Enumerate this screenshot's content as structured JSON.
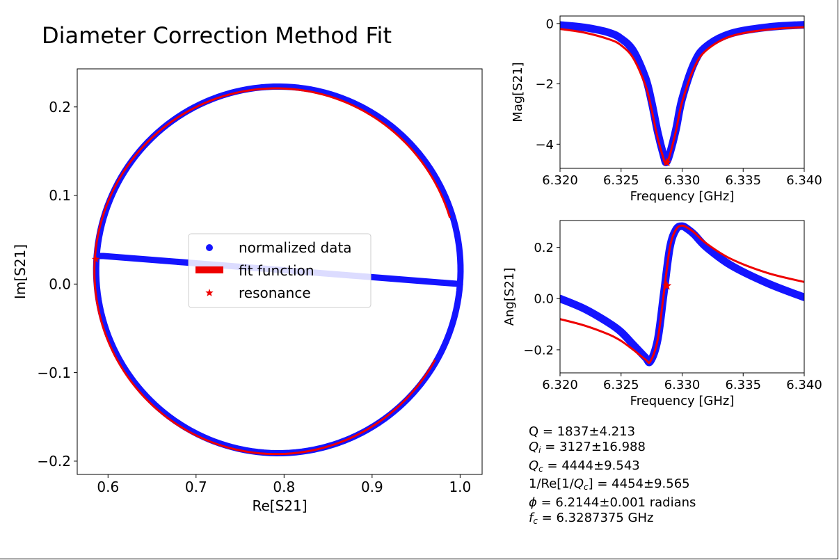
{
  "title": "Diameter Correction Method Fit",
  "colors": {
    "data": "#1414ff",
    "fit": "#ee0000"
  },
  "legend": {
    "placement": "center",
    "entries": [
      "normalized data",
      "fit function",
      "resonance"
    ]
  },
  "stats": {
    "q_label": "Q",
    "q_value": "1837±4.213",
    "qi_label": "Q",
    "qi_sub": "i",
    "qi_value": "3127±16.988",
    "qc_label": "Q",
    "qc_sub": "c",
    "qc_value": "4444±9.543",
    "req_prefix": "1/Re[1/",
    "req_label": "Q",
    "req_sub": "c",
    "req_suffix": "]",
    "req_value": "4454±9.565",
    "phi_label": "ϕ",
    "phi_value": "6.2144±0.001 radians",
    "fc_label": "f",
    "fc_sub": "c",
    "fc_value": "6.3287375 GHz"
  },
  "chart_data": [
    {
      "type": "scatter",
      "panel": "complex-plane",
      "xlabel": "Re[S21]",
      "ylabel": "Im[S21]",
      "xlim": [
        0.565,
        1.025
      ],
      "ylim": [
        -0.215,
        0.243
      ],
      "xticks": [
        0.6,
        0.7,
        0.8,
        0.9,
        1.0
      ],
      "xtick_labels": [
        "0.6",
        "0.7",
        "0.8",
        "0.9",
        "1.0"
      ],
      "yticks": [
        -0.2,
        -0.1,
        0.0,
        0.1,
        0.2
      ],
      "ytick_labels": [
        "−0.2",
        "−0.1",
        "0.0",
        "0.1",
        "0.2"
      ],
      "grid": false,
      "series": [
        {
          "name": "normalized data",
          "kind": "circle-loop",
          "center": [
            0.7935,
            0.016
          ],
          "radius": 0.207,
          "start_angle_deg": 175.5
        },
        {
          "name": "fit function",
          "kind": "arc",
          "center": [
            0.791,
            0.0145
          ],
          "radius": 0.2065,
          "start_angle_deg": 17,
          "end_angle_deg": 332
        },
        {
          "name": "resonance",
          "kind": "marker",
          "x": 0.586,
          "y": 0.028
        }
      ]
    },
    {
      "type": "line",
      "panel": "magnitude",
      "xlabel": "Frequency [GHz]",
      "ylabel": "Mag[S21]",
      "xlim": [
        6.32,
        6.34
      ],
      "ylim": [
        -4.8,
        0.25
      ],
      "xticks": [
        6.32,
        6.325,
        6.33,
        6.335,
        6.34
      ],
      "xtick_labels": [
        "6.320",
        "6.325",
        "6.330",
        "6.335",
        "6.340"
      ],
      "yticks": [
        -4,
        -2,
        0
      ],
      "ytick_labels": [
        "−4",
        "−2",
        "0"
      ],
      "grid": false,
      "series": [
        {
          "name": "normalized data",
          "x": [
            6.32,
            6.322,
            6.324,
            6.325,
            6.326,
            6.327,
            6.3275,
            6.328,
            6.3285,
            6.3287,
            6.329,
            6.3295,
            6.33,
            6.331,
            6.332,
            6.334,
            6.337,
            6.34
          ],
          "y": [
            -0.05,
            -0.13,
            -0.3,
            -0.5,
            -0.9,
            -1.8,
            -2.6,
            -3.6,
            -4.4,
            -4.6,
            -4.3,
            -3.5,
            -2.5,
            -1.3,
            -0.75,
            -0.33,
            -0.12,
            -0.04
          ]
        },
        {
          "name": "fit function",
          "x": [
            6.32,
            6.322,
            6.324,
            6.325,
            6.326,
            6.327,
            6.3275,
            6.328,
            6.3285,
            6.3287,
            6.329,
            6.3295,
            6.33,
            6.331,
            6.332,
            6.334,
            6.337,
            6.34
          ],
          "y": [
            -0.18,
            -0.3,
            -0.52,
            -0.72,
            -1.15,
            -2.05,
            -2.85,
            -3.8,
            -4.5,
            -4.65,
            -4.35,
            -3.55,
            -2.6,
            -1.45,
            -0.88,
            -0.42,
            -0.2,
            -0.12
          ]
        },
        {
          "name": "resonance",
          "x": [
            6.32875
          ],
          "y": [
            -4.6
          ]
        }
      ]
    },
    {
      "type": "line",
      "panel": "angle",
      "xlabel": "Frequency [GHz]",
      "ylabel": "Ang[S21]",
      "xlim": [
        6.32,
        6.34
      ],
      "ylim": [
        -0.29,
        0.305
      ],
      "xticks": [
        6.32,
        6.325,
        6.33,
        6.335,
        6.34
      ],
      "xtick_labels": [
        "6.320",
        "6.325",
        "6.330",
        "6.335",
        "6.340"
      ],
      "yticks": [
        -0.2,
        0.0,
        0.2
      ],
      "ytick_labels": [
        "−0.2",
        "0.0",
        "0.2"
      ],
      "grid": false,
      "series": [
        {
          "name": "normalized data",
          "x": [
            6.32,
            6.322,
            6.324,
            6.325,
            6.326,
            6.327,
            6.3274,
            6.328,
            6.3285,
            6.329,
            6.3295,
            6.33,
            6.3305,
            6.331,
            6.332,
            6.334,
            6.337,
            6.34
          ],
          "y": [
            0.0,
            -0.04,
            -0.095,
            -0.13,
            -0.18,
            -0.23,
            -0.245,
            -0.16,
            0.02,
            0.2,
            0.27,
            0.283,
            0.27,
            0.25,
            0.2,
            0.13,
            0.06,
            0.005
          ]
        },
        {
          "name": "fit function",
          "x": [
            6.32,
            6.322,
            6.324,
            6.325,
            6.326,
            6.327,
            6.3274,
            6.328,
            6.3285,
            6.329,
            6.3295,
            6.33,
            6.3305,
            6.331,
            6.332,
            6.334,
            6.337,
            6.34
          ],
          "y": [
            -0.08,
            -0.105,
            -0.14,
            -0.165,
            -0.2,
            -0.238,
            -0.245,
            -0.16,
            0.02,
            0.2,
            0.27,
            0.285,
            0.275,
            0.258,
            0.215,
            0.155,
            0.1,
            0.065
          ]
        },
        {
          "name": "resonance",
          "x": [
            6.32875
          ],
          "y": [
            0.05
          ]
        }
      ]
    }
  ]
}
